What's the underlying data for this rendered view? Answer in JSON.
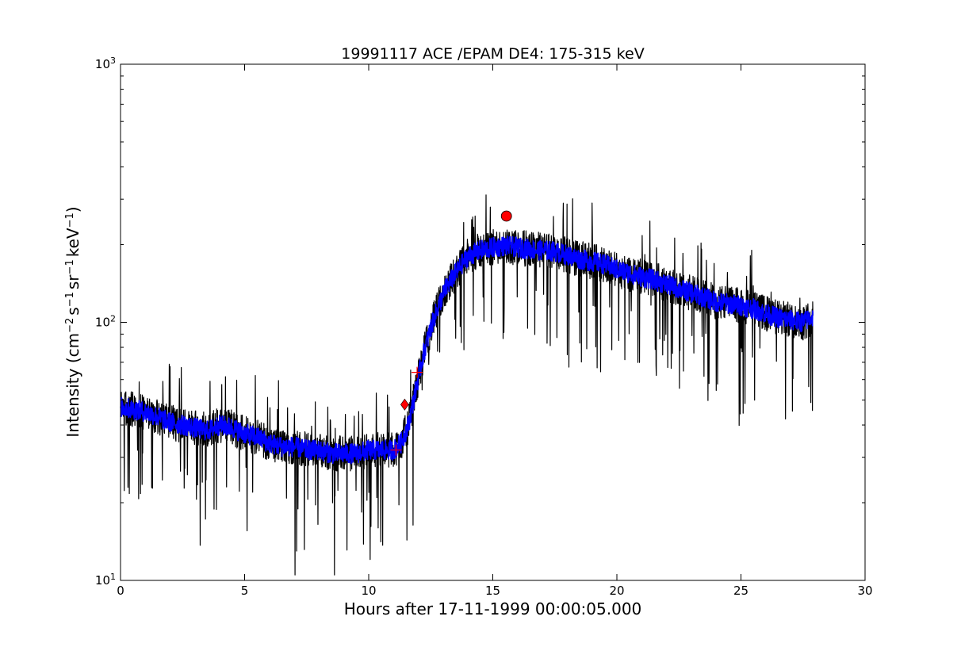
{
  "chart_data": {
    "type": "line",
    "title": "19991117 ACE /EPAM DE4: 175-315 keV",
    "xlabel": "Hours after 17-11-1999 00:00:05.000",
    "ylabel": "Intensity (cm⁻² s⁻¹ sr⁻¹ keV⁻¹)",
    "ylabel_parts": {
      "base1": "Intensity (cm",
      "sup1": "−2",
      "base2": "s",
      "sup2": "−1",
      "base3": "sr",
      "sup3": "−1",
      "base4": "keV",
      "sup4": "−1",
      "close": ")"
    },
    "xlim": [
      0,
      30
    ],
    "ylim": [
      10,
      1000
    ],
    "yscale": "log",
    "grid": false,
    "x_ticks": [
      0,
      5,
      10,
      15,
      20,
      25,
      30
    ],
    "y_ticks": [
      {
        "value": 10,
        "base": "10",
        "exp": "1"
      },
      {
        "value": 100,
        "base": "10",
        "exp": "2"
      },
      {
        "value": 1000,
        "base": "10",
        "exp": "3"
      }
    ],
    "series": [
      {
        "color": "#000000",
        "noise": 0.16,
        "x": [
          0,
          0.5,
          1,
          1.5,
          2,
          2.5,
          3,
          3.5,
          4,
          4.5,
          5,
          5.5,
          6,
          6.5,
          7,
          7.5,
          8,
          8.5,
          9,
          9.5,
          10,
          10.5,
          11,
          11.3,
          11.6,
          11.9,
          12.2,
          12.5,
          12.8,
          13.1,
          13.4,
          13.7,
          14,
          14.5,
          15,
          15.5,
          16,
          16.5,
          17,
          17.5,
          18,
          18.5,
          19,
          19.5,
          20,
          20.5,
          21,
          21.5,
          22,
          22.5,
          23,
          23.5,
          24,
          24.5,
          25,
          25.5,
          26,
          26.5,
          27,
          27.5,
          27.9
        ],
        "y": [
          47,
          46,
          45,
          43,
          41,
          40,
          39,
          38,
          40,
          39,
          37,
          36,
          34,
          33,
          33,
          32,
          32,
          31,
          31,
          31,
          32,
          32,
          32,
          34,
          40,
          55,
          75,
          95,
          115,
          135,
          150,
          165,
          180,
          190,
          195,
          198,
          195,
          192,
          190,
          188,
          182,
          176,
          172,
          168,
          160,
          155,
          150,
          146,
          140,
          135,
          130,
          125,
          120,
          118,
          116,
          113,
          108,
          104,
          102,
          100,
          105
        ]
      },
      {
        "color": "#0000ff",
        "noise": 0.09,
        "x": [
          0,
          0.5,
          1,
          1.5,
          2,
          2.5,
          3,
          3.5,
          4,
          4.5,
          5,
          5.5,
          6,
          6.5,
          7,
          7.5,
          8,
          8.5,
          9,
          9.5,
          10,
          10.5,
          11,
          11.3,
          11.6,
          11.9,
          12.2,
          12.5,
          12.8,
          13.1,
          13.4,
          13.7,
          14,
          14.5,
          15,
          15.5,
          16,
          16.5,
          17,
          17.5,
          18,
          18.5,
          19,
          19.5,
          20,
          20.5,
          21,
          21.5,
          22,
          22.5,
          23,
          23.5,
          24,
          24.5,
          25,
          25.5,
          26,
          26.5,
          27,
          27.5,
          27.9
        ],
        "y": [
          47,
          46,
          45,
          43,
          41,
          40,
          39,
          38,
          40,
          39,
          37,
          36,
          34,
          33,
          33,
          32,
          32,
          31,
          31,
          31,
          32,
          32,
          32,
          34,
          40,
          55,
          75,
          95,
          115,
          135,
          150,
          165,
          180,
          190,
          195,
          198,
          195,
          192,
          190,
          188,
          182,
          176,
          172,
          168,
          160,
          155,
          150,
          146,
          140,
          135,
          130,
          125,
          120,
          118,
          116,
          113,
          108,
          104,
          102,
          100,
          105
        ]
      }
    ],
    "markers": [
      {
        "shape": "plus",
        "x": 11.1,
        "y": 32,
        "color": "#ff0000"
      },
      {
        "shape": "diamond",
        "x": 11.45,
        "y": 48,
        "color": "#ff0000"
      },
      {
        "shape": "plus",
        "x": 11.95,
        "y": 64,
        "color": "#ff0000"
      },
      {
        "shape": "circle",
        "x": 15.55,
        "y": 258,
        "color": "#ff0000"
      }
    ]
  }
}
